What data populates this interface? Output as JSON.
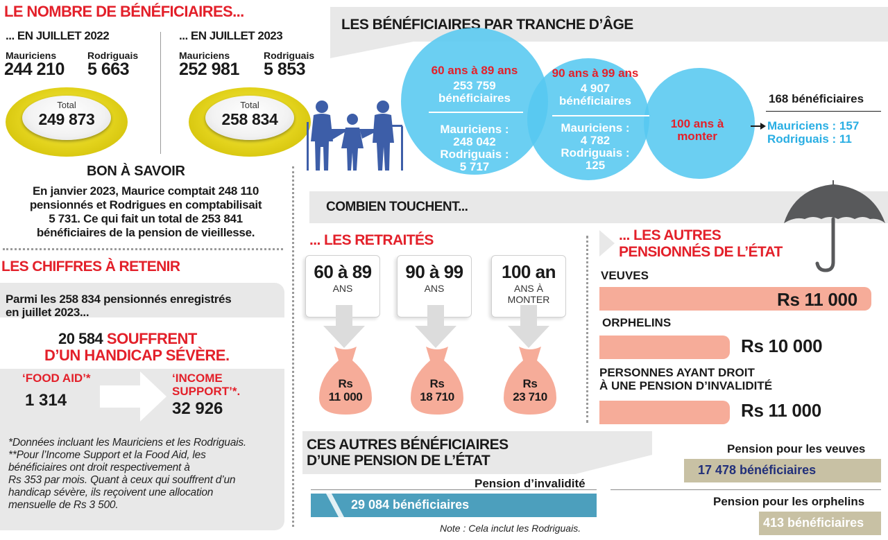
{
  "count_section": {
    "title": "LE NOMBRE DE BÉNÉFICIAIRES...",
    "july_2022": {
      "heading": "... EN JUILLET 2022",
      "mauriciens_label": "Mauriciens",
      "mauriciens_value": "244 210",
      "rodriguais_label": "Rodriguais",
      "rodriguais_value": "5 663",
      "total_label": "Total",
      "total_value": "249 873"
    },
    "july_2023": {
      "heading": "... EN JUILLET 2023",
      "mauriciens_label": "Mauriciens",
      "mauriciens_value": "252 981",
      "rodriguais_label": "Rodriguais",
      "rodriguais_value": "5 853",
      "total_label": "Total",
      "total_value": "258 834"
    }
  },
  "bon_a_savoir": {
    "title": "BON À SAVOIR",
    "lines": [
      "En janvier 2023, Maurice comptait 248 110",
      "pensionnés et Rodrigues en comptabilisait",
      "5 731. Ce qui fait un total de 253 841",
      "bénéficiaires de la pension de vieillesse."
    ]
  },
  "chiffres": {
    "title": "LES CHIFFRES À RETENIR",
    "intro_lines": [
      "Parmi les 258 834 pensionnés enregistrés",
      "en juillet 2023..."
    ],
    "handicap_value": "20 584",
    "handicap_text_1": "SOUFFRENT",
    "handicap_text_2": "D’UN HANDICAP SÉVÈRE.",
    "food_aid_label": "‘FOOD AID’*",
    "food_aid_value": "1 314",
    "income_label_1": "‘INCOME",
    "income_label_2": "SUPPORT’*.",
    "income_value": "32 926",
    "footnotes": [
      "*Données incluant les Mauriciens et les Rodriguais.",
      "**Pour l’Income Support et la Food Aid, les",
      "bénéficiaires ont droit respectivement à",
      "Rs 353 par mois. Quant à ceux qui souffrent d’un",
      "handicap sévère, ils reçoivent une allocation",
      "mensuelle de Rs 3 500."
    ]
  },
  "age_section": {
    "title": "LES BÉNÉFICIAIRES PAR TRANCHE D’ÂGE",
    "group_60_89": {
      "range": "60 ans à 89 ans",
      "count": "253 759",
      "count_label": "bénéficiaires",
      "mauriciens_label": "Mauriciens :",
      "mauriciens_value": "248 042",
      "rodriguais_label": "Rodriguais :",
      "rodriguais_value": "5 717"
    },
    "group_90_99": {
      "range": "90 ans à 99 ans",
      "count": "4 907",
      "count_label": "bénéficiaires",
      "mauriciens_label": "Mauriciens :",
      "mauriciens_value": "4 782",
      "rodriguais_label": "Rodriguais :",
      "rodriguais_value": "125"
    },
    "group_100": {
      "range_1": "100 ans à",
      "range_2": "monter",
      "count_text": "168 bénéficiaires",
      "mauriciens_text": "Mauriciens : 157",
      "rodriguais_text": "Rodriguais : 11"
    }
  },
  "combien": {
    "title": "COMBIEN TOUCHENT...",
    "retraites_title": "... LES RETRAITÉS",
    "cards": [
      {
        "big": "60 à 89",
        "small_1": "ANS",
        "small_2": "",
        "bag_1": "Rs",
        "bag_2": "11 000"
      },
      {
        "big": "90 à 99",
        "small_1": "ANS",
        "small_2": "",
        "bag_1": "Rs",
        "bag_2": "18 710"
      },
      {
        "big": "100 an",
        "small_1": "ANS À",
        "small_2": "MONTER",
        "bag_1": "Rs",
        "bag_2": "23 710"
      }
    ],
    "autres_title_1": "... LES AUTRES",
    "autres_title_2": "PENSIONNÉS DE L’ÉTAT",
    "veuves_label": "VEUVES",
    "veuves_amount": "Rs 11 000",
    "orphelins_label": "ORPHELINS",
    "orphelins_amount": "Rs 10 000",
    "invalidite_label_1": "PERSONNES AYANT DROIT",
    "invalidite_label_2": "À UNE PENSION D’INVALIDITÉ",
    "invalidite_amount": "Rs 11 000"
  },
  "autres_beneficiaires": {
    "title_1": "CES AUTRES BÉNÉFICIAIRES",
    "title_2": "D’UNE PENSION DE L’ÉTAT",
    "invalidite_label": "Pension d’invalidité",
    "invalidite_value": "29 084 bénéficiaires",
    "note": "Note : Cela inclut les Rodriguais.",
    "veuves_label": "Pension pour les veuves",
    "veuves_value": "17 478 bénéficiaires",
    "orphelins_label": "Pension pour les orphelins",
    "orphelins_value": "413 bénéficiaires"
  },
  "colors": {
    "red": "#e3202a",
    "cyan": "#56c8f0",
    "salmon": "#f6ac99",
    "yellow": "#e2d21b",
    "navy_figures": "#3d5ea8",
    "teal_bar": "#4c9fbd",
    "khaki_bar": "#c8c1a4"
  },
  "icons": [
    "family-figures-icon",
    "umbrella-icon",
    "arrow-right-icon",
    "money-bag-icon",
    "down-arrow-icon"
  ]
}
